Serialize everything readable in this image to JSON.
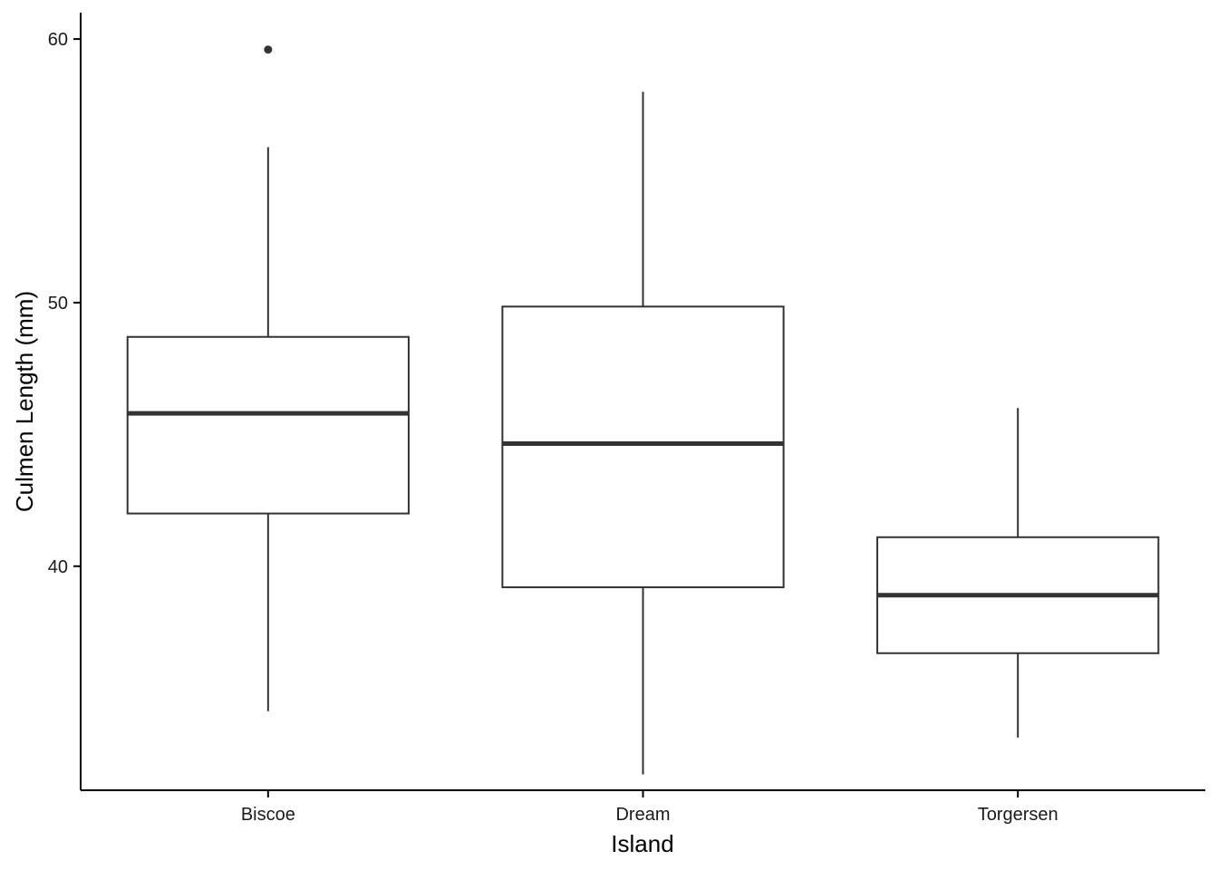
{
  "chart_data": {
    "type": "boxplot",
    "title": "",
    "xlabel": "Island",
    "ylabel": "Culmen Length (mm)",
    "categories": [
      "Biscoe",
      "Dream",
      "Torgersen"
    ],
    "ylim": [
      31.5,
      61.0
    ],
    "yticks": [
      40,
      50,
      60
    ],
    "boxes": [
      {
        "category": "Biscoe",
        "whisker_low": 34.5,
        "q1": 42.0,
        "median": 45.8,
        "q3": 48.7,
        "whisker_high": 55.9,
        "outliers": [
          59.6
        ]
      },
      {
        "category": "Dream",
        "whisker_low": 32.1,
        "q1": 39.2,
        "median": 44.65,
        "q3": 49.85,
        "whisker_high": 58.0,
        "outliers": []
      },
      {
        "category": "Torgersen",
        "whisker_low": 33.5,
        "q1": 36.7,
        "median": 38.9,
        "q3": 41.1,
        "whisker_high": 46.0,
        "outliers": []
      }
    ],
    "grid": false,
    "legend": "none",
    "colors": {
      "line": "#333333",
      "axis": "#000000",
      "fill": "#ffffff"
    }
  }
}
